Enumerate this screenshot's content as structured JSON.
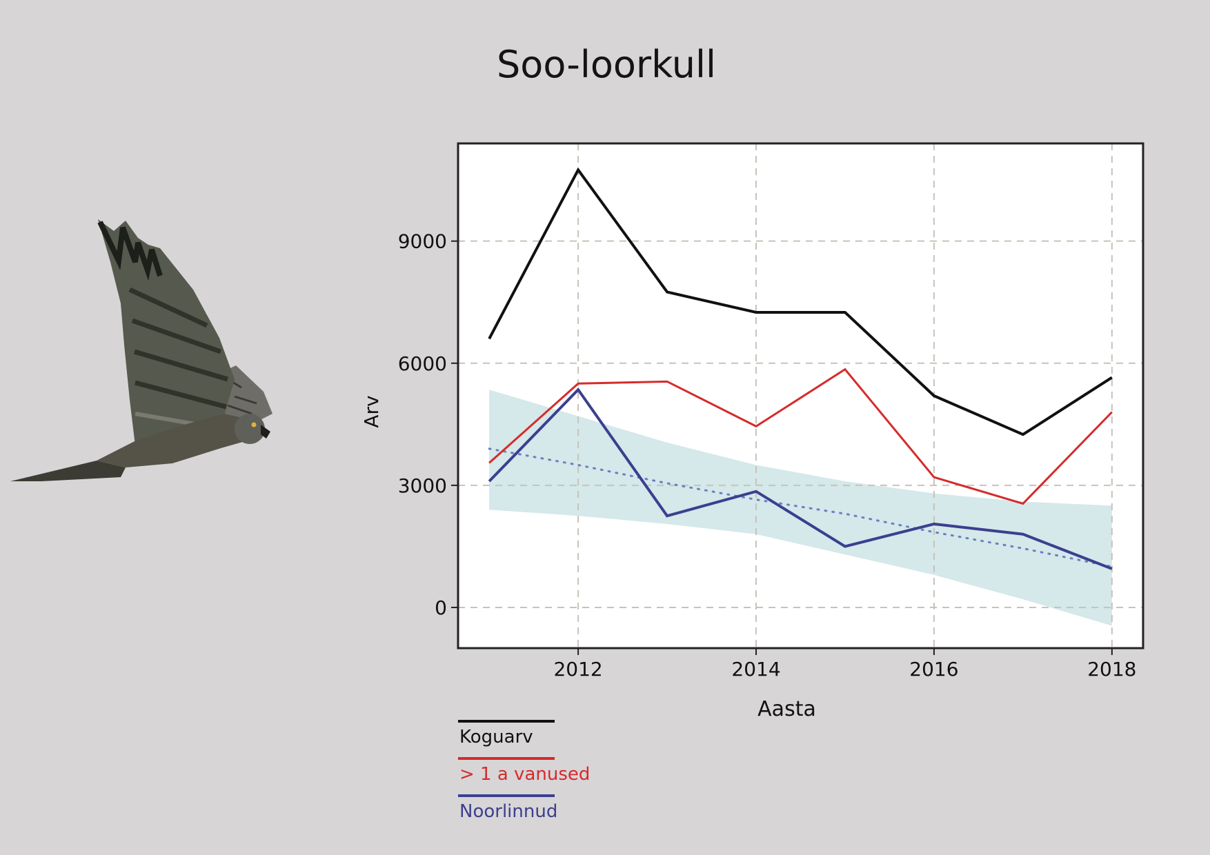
{
  "title": "Soo-loorkull",
  "colors": {
    "background": "#d8d5d7",
    "koguarv": "#111111",
    "vanused": "#d52b2b",
    "noorlinnud": "#3b3f8f",
    "band": "#d5e8ea",
    "trend": "#6a7fc0",
    "grid": "#c9c2b8"
  },
  "legend": [
    {
      "label": "Koguarv",
      "color": "#111111"
    },
    {
      "label": "> 1 a vanused",
      "color": "#d52b2b"
    },
    {
      "label": "Noorlinnud",
      "color": "#3b3f8f"
    }
  ],
  "chart_data": {
    "type": "line",
    "title": "Soo-loorkull",
    "xlabel": "Aasta",
    "ylabel": "Arv",
    "x": [
      2011,
      2012,
      2013,
      2014,
      2015,
      2016,
      2017,
      2018
    ],
    "xticks": [
      "2012",
      "2014",
      "2016",
      "2018"
    ],
    "yticks": [
      "0",
      "3000",
      "6000",
      "9000"
    ],
    "xlim": [
      2010.65,
      2018.35
    ],
    "ylim": [
      -1000,
      11400
    ],
    "grid": true,
    "legend_position": "bottom-left",
    "series": [
      {
        "name": "Koguarv",
        "values": [
          6600,
          10750,
          7750,
          7250,
          7250,
          5200,
          4250,
          5650
        ]
      },
      {
        "name": "> 1 a vanused",
        "values": [
          3550,
          5500,
          5550,
          4450,
          5850,
          3200,
          2550,
          4800
        ]
      },
      {
        "name": "Noorlinnud",
        "values": [
          3100,
          5350,
          2250,
          2850,
          1500,
          2050,
          1800,
          950
        ]
      }
    ],
    "trend": {
      "values": [
        3900,
        3500,
        3050,
        2650,
        2300,
        1850,
        1450,
        1000
      ]
    },
    "confidence_band": {
      "upper": [
        5350,
        4700,
        4050,
        3500,
        3100,
        2800,
        2600,
        2500
      ],
      "lower": [
        2400,
        2250,
        2050,
        1800,
        1300,
        800,
        200,
        -450
      ]
    }
  }
}
